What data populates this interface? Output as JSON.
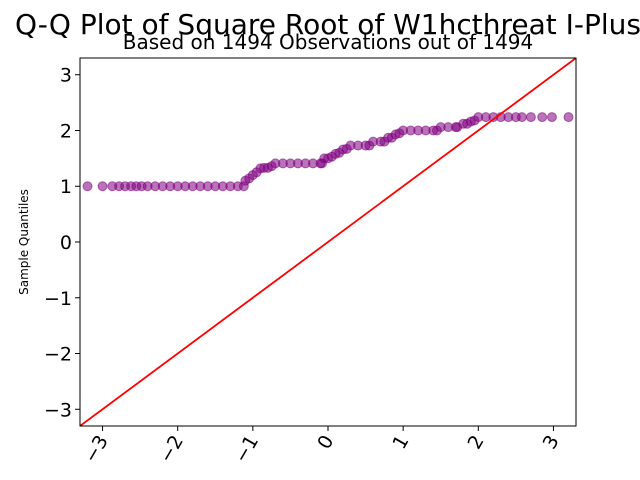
{
  "chart_data": {
    "type": "scatter",
    "title": "Q-Q Plot of Square Root of W1hcthreat I-Plus",
    "subtitle": "Based on 1494 Observations out of 1494",
    "xlabel": "",
    "ylabel": "Sample Quantiles",
    "xlim": [
      -3.3,
      3.3
    ],
    "ylim": [
      -3.3,
      3.3
    ],
    "xticks": [
      -3,
      -2,
      -1,
      0,
      1,
      2,
      3
    ],
    "xtick_labels": [
      "−3",
      "−2",
      "−1",
      "0",
      "1",
      "2",
      "3"
    ],
    "yticks": [
      -3,
      -2,
      -1,
      0,
      1,
      2,
      3
    ],
    "ytick_labels": [
      "−3",
      "−2",
      "−1",
      "0",
      "1",
      "2",
      "3"
    ],
    "grid": false,
    "point_color": "#800080",
    "reference_line": {
      "color": "#ff0000",
      "slope": 1,
      "intercept": 0
    },
    "series": [
      {
        "points": [
          [
            -3.2,
            1.0
          ],
          [
            -3.0,
            1.0
          ],
          [
            -2.87,
            1.0
          ],
          [
            -2.78,
            1.0
          ],
          [
            -2.7,
            1.0
          ],
          [
            -2.62,
            1.0
          ],
          [
            -2.55,
            1.0
          ],
          [
            -2.48,
            1.0
          ],
          [
            -2.4,
            1.0
          ],
          [
            -2.3,
            1.0
          ],
          [
            -2.2,
            1.0
          ],
          [
            -2.1,
            1.0
          ],
          [
            -2.0,
            1.0
          ],
          [
            -1.9,
            1.0
          ],
          [
            -1.8,
            1.0
          ],
          [
            -1.7,
            1.0
          ],
          [
            -1.6,
            1.0
          ],
          [
            -1.5,
            1.0
          ],
          [
            -1.4,
            1.0
          ],
          [
            -1.3,
            1.0
          ],
          [
            -1.2,
            1.0
          ],
          [
            -1.12,
            1.0
          ],
          [
            -1.1,
            1.1
          ],
          [
            -1.05,
            1.14
          ],
          [
            -1.0,
            1.2
          ],
          [
            -0.95,
            1.25
          ],
          [
            -0.9,
            1.32
          ],
          [
            -0.85,
            1.33
          ],
          [
            -0.8,
            1.33
          ],
          [
            -0.75,
            1.36
          ],
          [
            -0.7,
            1.41
          ],
          [
            -0.6,
            1.41
          ],
          [
            -0.5,
            1.41
          ],
          [
            -0.4,
            1.41
          ],
          [
            -0.3,
            1.41
          ],
          [
            -0.2,
            1.41
          ],
          [
            -0.1,
            1.41
          ],
          [
            -0.08,
            1.41
          ],
          [
            -0.05,
            1.5
          ],
          [
            0.0,
            1.5
          ],
          [
            0.05,
            1.53
          ],
          [
            0.1,
            1.58
          ],
          [
            0.15,
            1.6
          ],
          [
            0.2,
            1.66
          ],
          [
            0.25,
            1.67
          ],
          [
            0.3,
            1.73
          ],
          [
            0.4,
            1.73
          ],
          [
            0.5,
            1.73
          ],
          [
            0.55,
            1.73
          ],
          [
            0.6,
            1.8
          ],
          [
            0.7,
            1.8
          ],
          [
            0.75,
            1.8
          ],
          [
            0.8,
            1.87
          ],
          [
            0.85,
            1.87
          ],
          [
            0.9,
            1.93
          ],
          [
            0.95,
            1.95
          ],
          [
            1.0,
            2.0
          ],
          [
            1.1,
            2.0
          ],
          [
            1.2,
            2.0
          ],
          [
            1.3,
            2.0
          ],
          [
            1.4,
            2.0
          ],
          [
            1.45,
            2.0
          ],
          [
            1.5,
            2.06
          ],
          [
            1.6,
            2.06
          ],
          [
            1.7,
            2.06
          ],
          [
            1.72,
            2.06
          ],
          [
            1.8,
            2.12
          ],
          [
            1.85,
            2.12
          ],
          [
            1.9,
            2.16
          ],
          [
            1.95,
            2.18
          ],
          [
            2.0,
            2.24
          ],
          [
            2.1,
            2.24
          ],
          [
            2.2,
            2.24
          ],
          [
            2.3,
            2.24
          ],
          [
            2.4,
            2.24
          ],
          [
            2.5,
            2.24
          ],
          [
            2.58,
            2.24
          ],
          [
            2.7,
            2.24
          ],
          [
            2.85,
            2.24
          ],
          [
            2.98,
            2.24
          ],
          [
            3.2,
            2.24
          ]
        ]
      }
    ]
  }
}
